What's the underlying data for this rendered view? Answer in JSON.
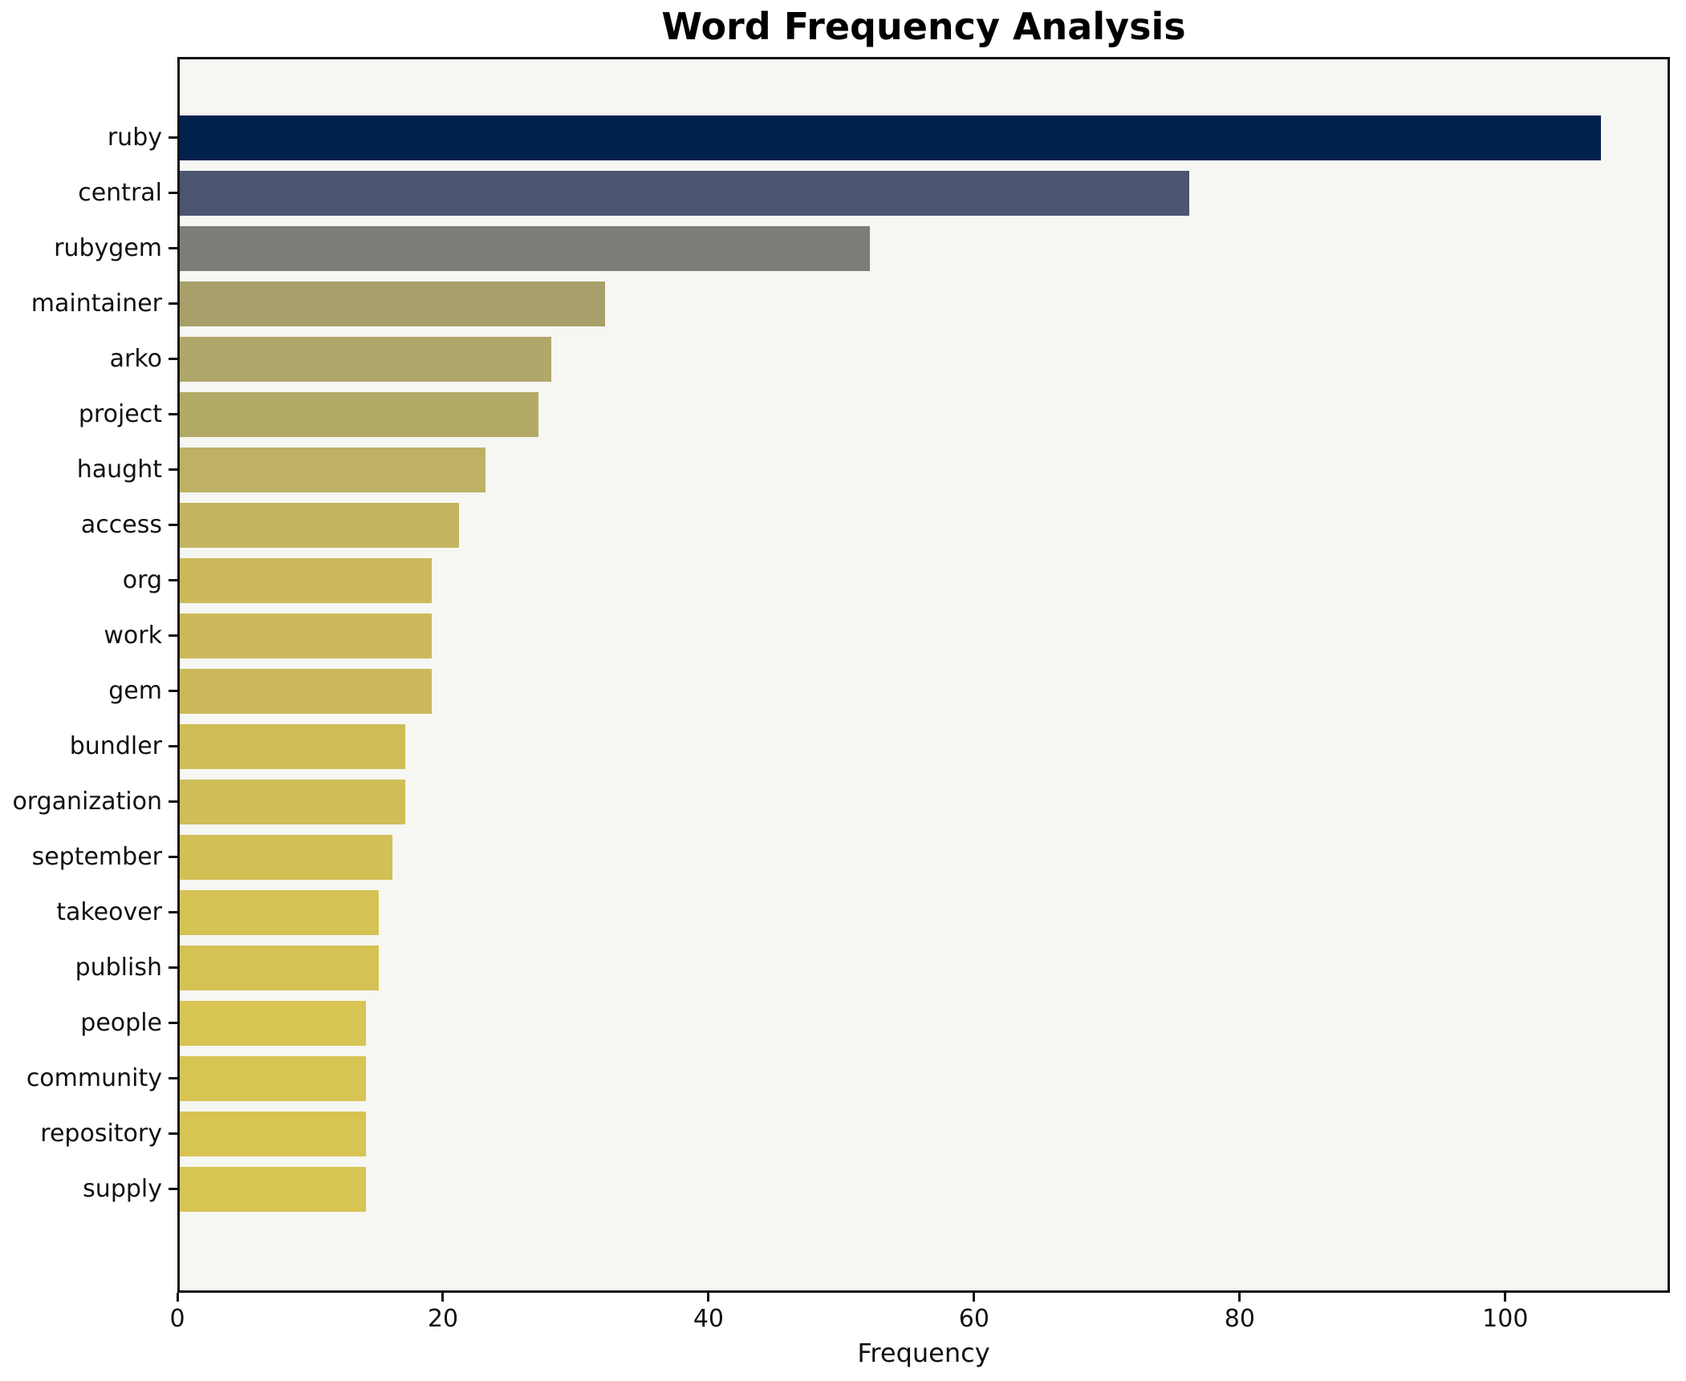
{
  "chart_data": {
    "type": "bar",
    "orientation": "horizontal",
    "title": "Word Frequency Analysis",
    "xlabel": "Frequency",
    "ylabel": "",
    "categories": [
      "ruby",
      "central",
      "rubygem",
      "maintainer",
      "arko",
      "project",
      "haught",
      "access",
      "org",
      "work",
      "gem",
      "bundler",
      "organization",
      "september",
      "takeover",
      "publish",
      "people",
      "community",
      "repository",
      "supply"
    ],
    "values": [
      107,
      76,
      52,
      32,
      28,
      27,
      23,
      21,
      19,
      19,
      19,
      17,
      17,
      16,
      15,
      15,
      14,
      14,
      14,
      14
    ],
    "bar_colors": [
      "#01224e",
      "#4c5570",
      "#7d7d78",
      "#a8a06a",
      "#b0a76a",
      "#b4aa68",
      "#bfb163",
      "#c3b560",
      "#cbb95b",
      "#cbb95b",
      "#cbb95b",
      "#cfbd58",
      "#cfbd58",
      "#d2c055",
      "#d5c254",
      "#d5c254",
      "#d8c453",
      "#d8c453",
      "#d8c453",
      "#d8c453"
    ],
    "xlim": [
      0,
      112.4
    ],
    "xticks": [
      0,
      20,
      40,
      60,
      80,
      100
    ],
    "grid": false,
    "legend_position": "none",
    "colors": {
      "figure_background": "#ffffff",
      "axes_background": "#f6f6f3",
      "spine": "#111111",
      "text": "#111111"
    }
  }
}
